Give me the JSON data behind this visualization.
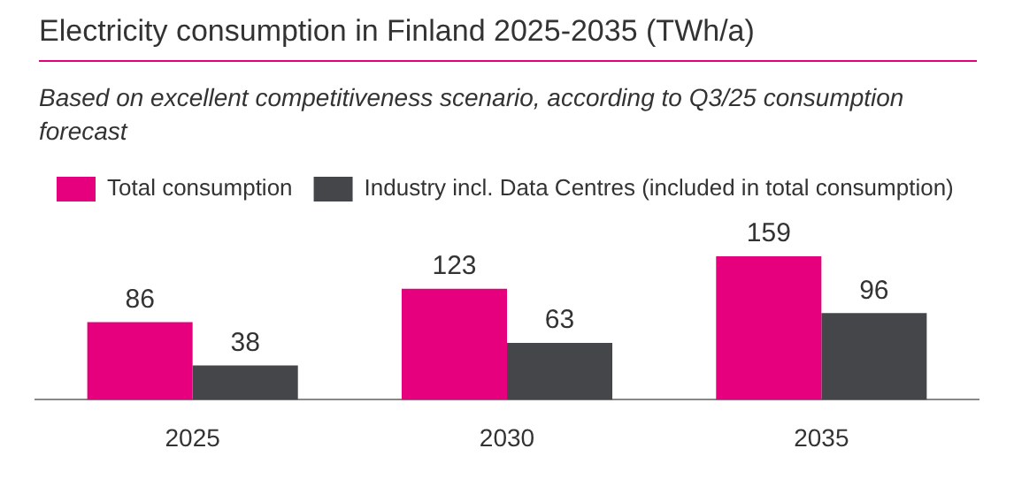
{
  "chart_data": {
    "type": "bar",
    "title": "Electricity consumption in Finland 2025-2035 (TWh/a)",
    "subtitle": "Based on excellent competitiveness scenario, according to Q3/25 consumption forecast",
    "categories": [
      "2025",
      "2030",
      "2035"
    ],
    "series": [
      {
        "name": "Total consumption",
        "color": "#e6007e",
        "values": [
          86,
          123,
          159
        ]
      },
      {
        "name": "Industry incl. Data Centres (included in total consumption)",
        "color": "#45464a",
        "values": [
          38,
          63,
          96
        ]
      }
    ],
    "data_labels": true,
    "legend": "top left",
    "grid": false
  }
}
